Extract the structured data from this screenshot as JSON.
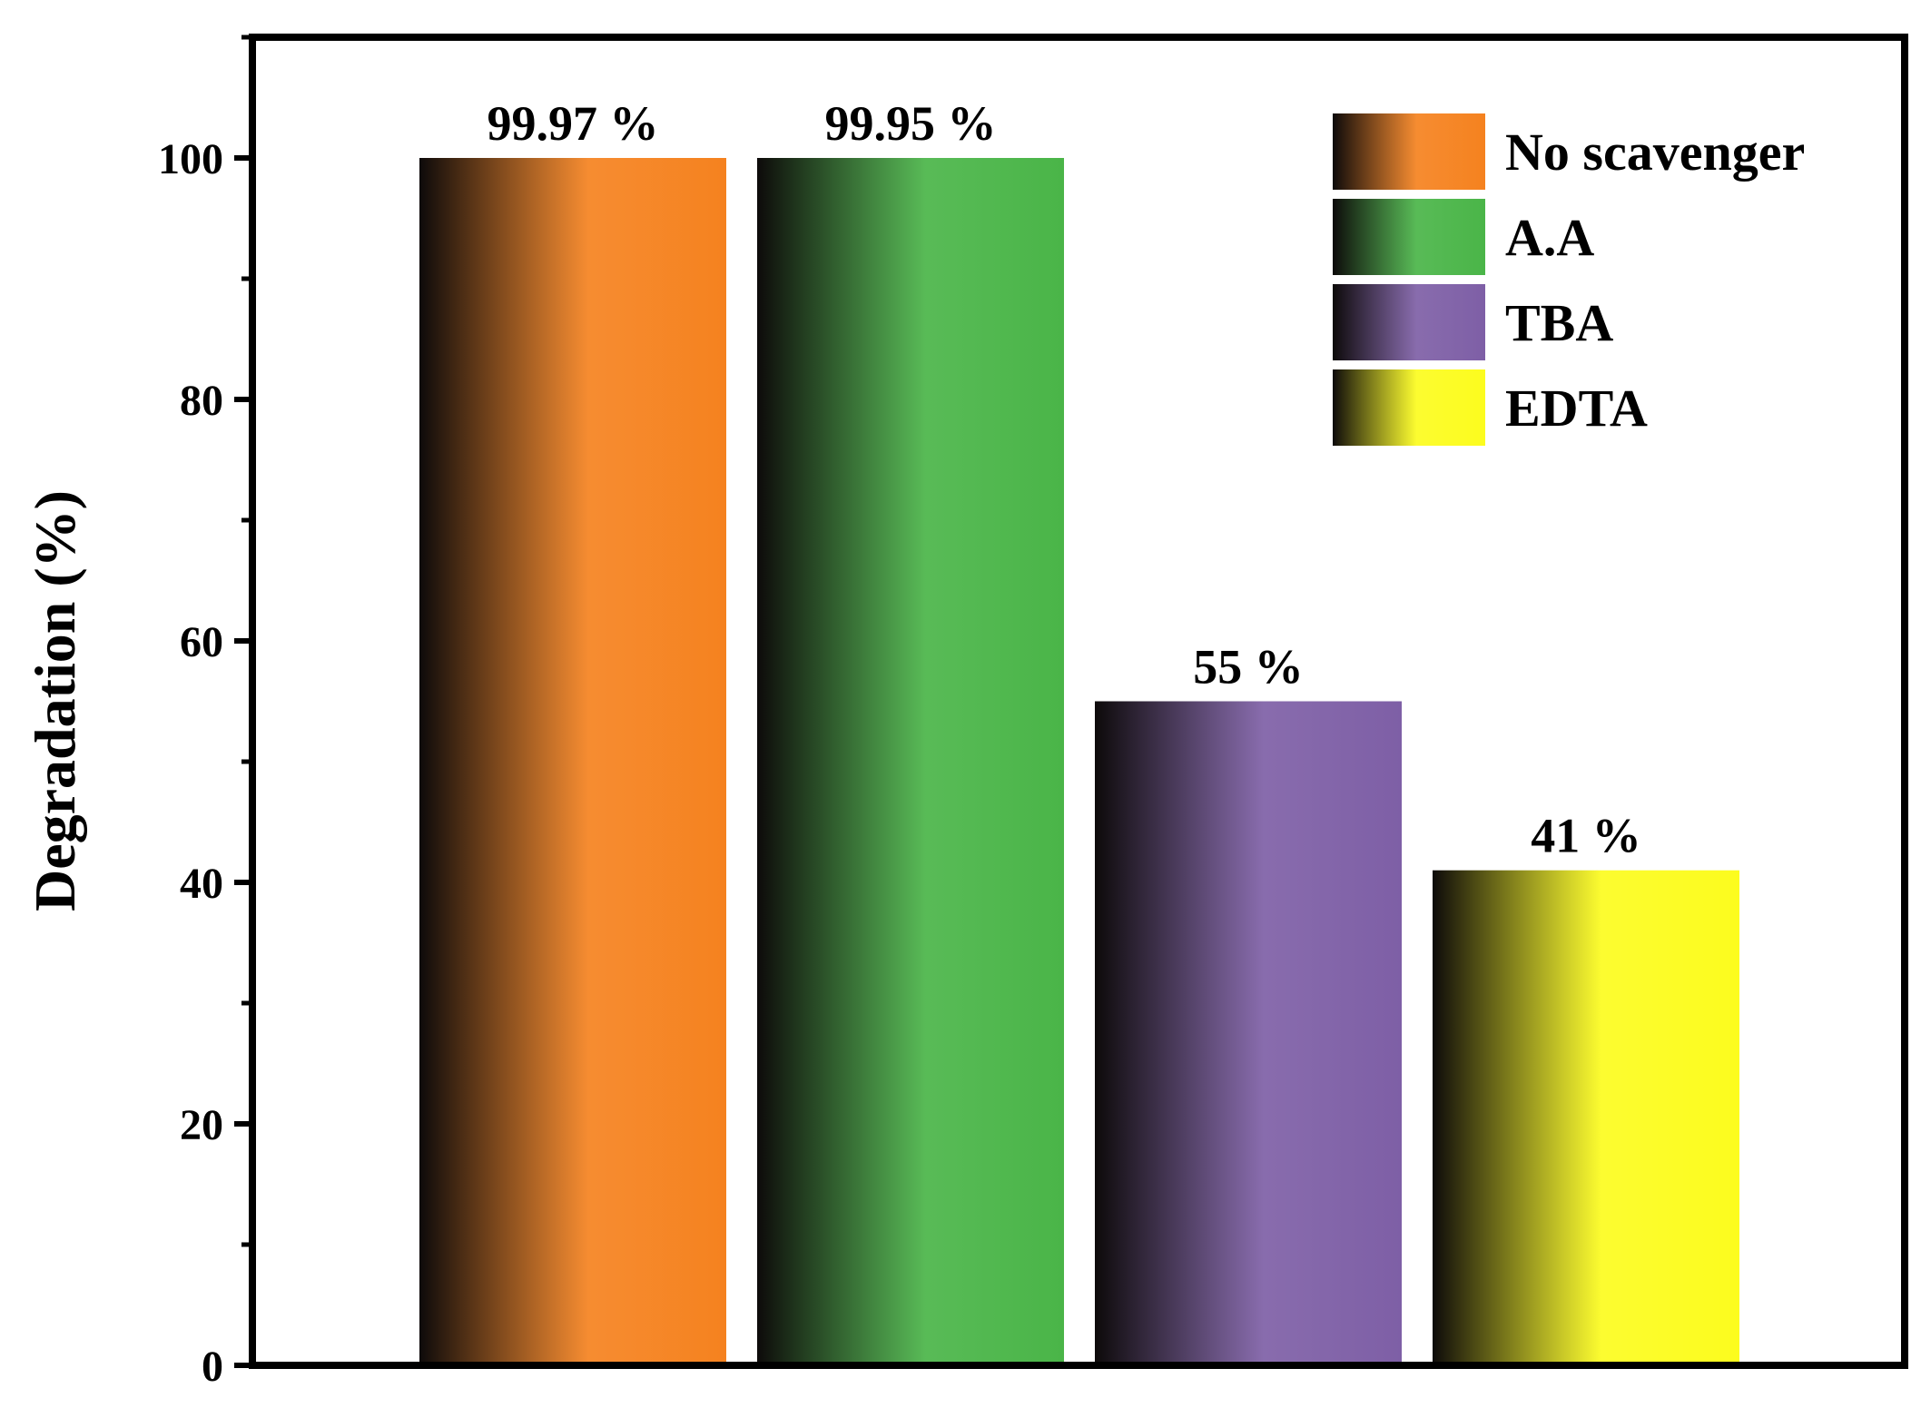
{
  "chart_data": {
    "type": "bar",
    "title": "",
    "xlabel": "",
    "ylabel": "Degradation (%)",
    "ylim": [
      0,
      110
    ],
    "yticks": [
      0,
      20,
      40,
      60,
      80,
      100
    ],
    "grid": false,
    "legend_position": "top-right",
    "series": [
      {
        "name": "No scavenger",
        "value": 99.97,
        "plot_value": 100,
        "label": "99.97 %",
        "color": "#f5821f"
      },
      {
        "name": "A.A",
        "value": 99.95,
        "plot_value": 100,
        "label": "99.95 %",
        "color": "#4ab548"
      },
      {
        "name": "TBA",
        "value": 55,
        "plot_value": 55,
        "label": "55 %",
        "color": "#7e5fa6"
      },
      {
        "name": "EDTA",
        "value": 41,
        "plot_value": 41,
        "label": "41 %",
        "color": "#fcfc1e"
      }
    ]
  }
}
